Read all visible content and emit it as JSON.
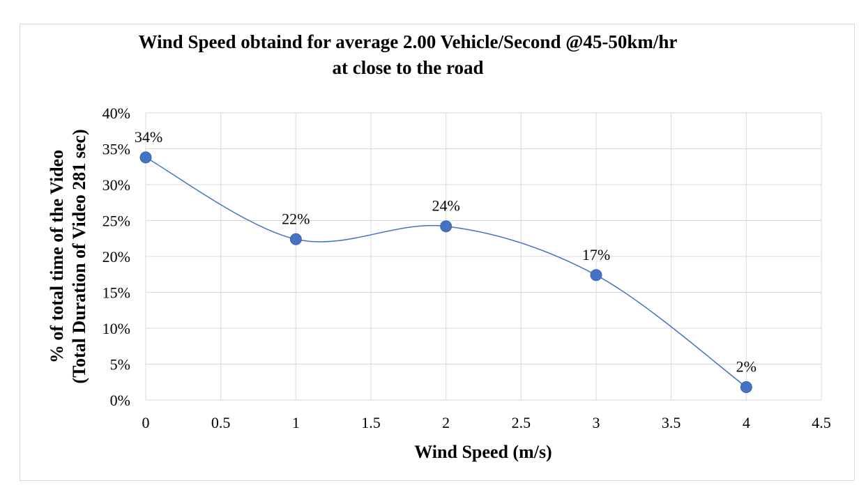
{
  "chart_data": {
    "type": "scatter",
    "title_lines": [
      "Wind Speed obtaind for average 2.00 Vehicle/Second @45-50km/hr",
      "at close to the road"
    ],
    "xlabel": "Wind Speed (m/s)",
    "ylabel_lines": [
      "% of total time of the Video",
      "(Total Duration of Video 281 sec)"
    ],
    "xlim": [
      0,
      4.5
    ],
    "ylim": [
      0,
      0.4
    ],
    "x_ticks": [
      "0",
      "0.5",
      "1",
      "1.5",
      "2",
      "2.5",
      "3",
      "3.5",
      "4",
      "4.5"
    ],
    "y_ticks": [
      "0%",
      "5%",
      "10%",
      "15%",
      "20%",
      "25%",
      "30%",
      "35%",
      "40%"
    ],
    "grid": true,
    "smooth": true,
    "legend": "none",
    "series": [
      {
        "x": [
          0,
          1,
          2,
          3,
          4
        ],
        "y": [
          0.338,
          0.224,
          0.242,
          0.174,
          0.018
        ],
        "labels": [
          "34%",
          "22%",
          "24%",
          "17%",
          "2%"
        ],
        "color": "#4472c4"
      }
    ]
  }
}
